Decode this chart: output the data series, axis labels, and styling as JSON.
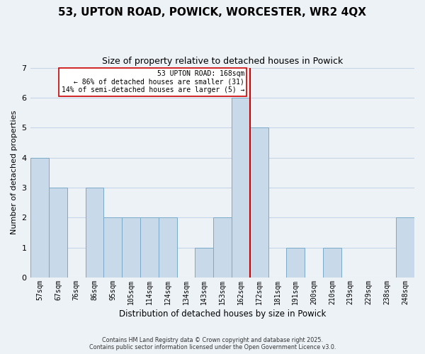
{
  "title_line1": "53, UPTON ROAD, POWICK, WORCESTER, WR2 4QX",
  "title_line2": "Size of property relative to detached houses in Powick",
  "xlabel": "Distribution of detached houses by size in Powick",
  "ylabel": "Number of detached properties",
  "bar_labels": [
    "57sqm",
    "67sqm",
    "76sqm",
    "86sqm",
    "95sqm",
    "105sqm",
    "114sqm",
    "124sqm",
    "134sqm",
    "143sqm",
    "153sqm",
    "162sqm",
    "172sqm",
    "181sqm",
    "191sqm",
    "200sqm",
    "210sqm",
    "219sqm",
    "229sqm",
    "238sqm",
    "248sqm"
  ],
  "bar_values": [
    4,
    3,
    0,
    3,
    2,
    2,
    2,
    2,
    0,
    1,
    2,
    6,
    5,
    0,
    1,
    0,
    1,
    0,
    0,
    0,
    2
  ],
  "bar_color": "#c8daea",
  "bar_edge_color": "#7aaac8",
  "ylim": [
    0,
    7
  ],
  "yticks": [
    0,
    1,
    2,
    3,
    4,
    5,
    6,
    7
  ],
  "grid_color": "#c5d5e5",
  "bg_color": "#edf2f7",
  "ref_line_index": 11,
  "annotation_text_line1": "53 UPTON ROAD: 168sqm",
  "annotation_text_line2": "← 86% of detached houses are smaller (31)",
  "annotation_text_line3": "14% of semi-detached houses are larger (5) →",
  "annotation_box_color": "#ffffff",
  "annotation_box_edge": "#cc0000",
  "ref_line_color": "#cc0000",
  "footer_line1": "Contains HM Land Registry data © Crown copyright and database right 2025.",
  "footer_line2": "Contains public sector information licensed under the Open Government Licence v3.0."
}
